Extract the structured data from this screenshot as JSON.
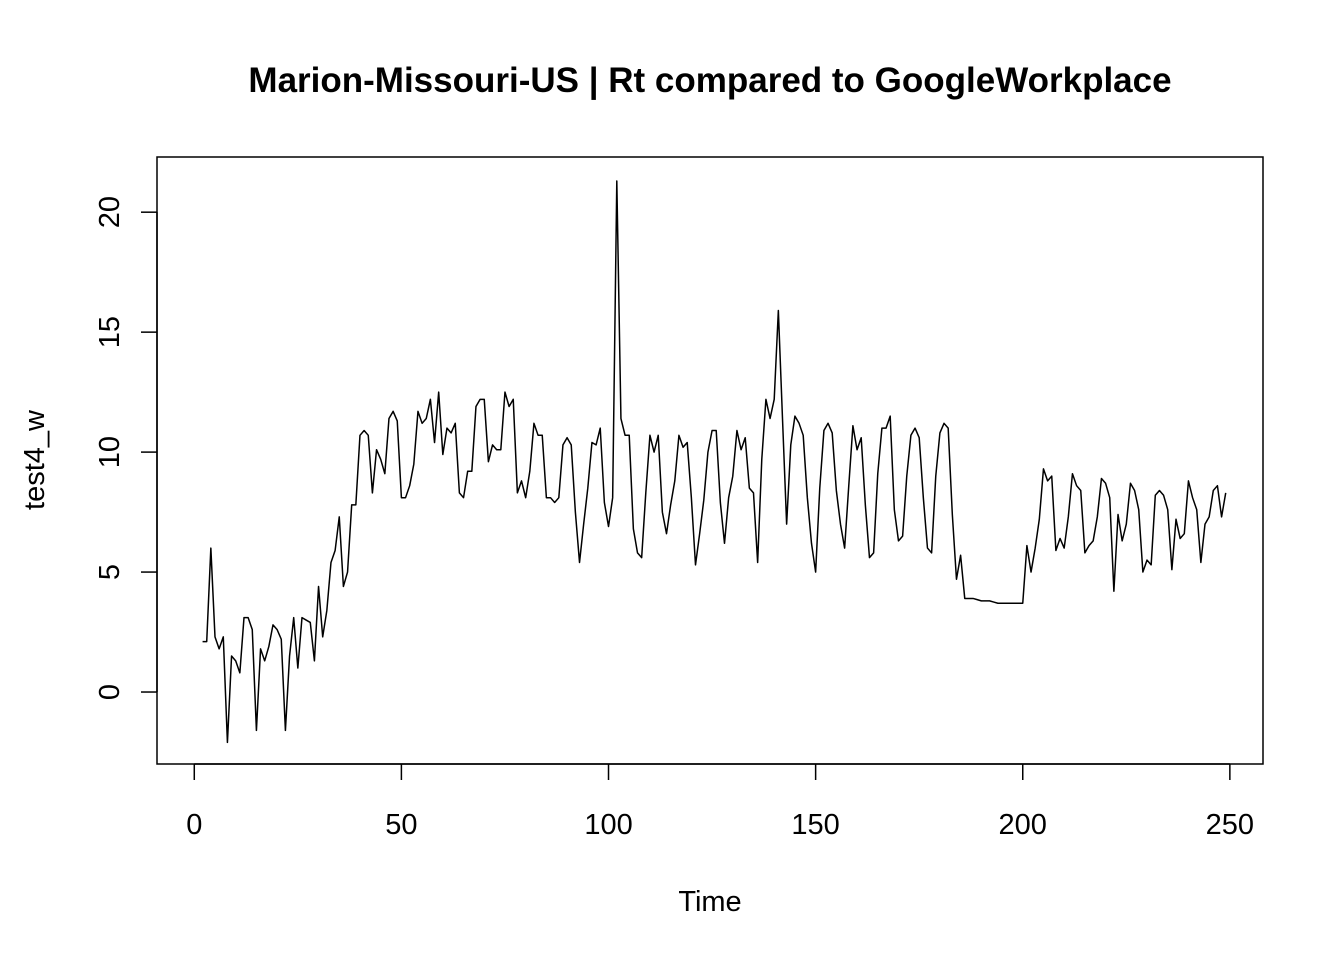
{
  "chart_data": {
    "type": "line",
    "title": "Marion-Missouri-US | Rt compared to GoogleWorkplace",
    "xlabel": "Time",
    "ylabel": "test4_w",
    "xlim": [
      -9,
      258
    ],
    "ylim": [
      -3,
      22.3
    ],
    "x_ticks": [
      0,
      50,
      100,
      150,
      200,
      250
    ],
    "y_ticks": [
      0,
      5,
      10,
      15,
      20
    ],
    "x_tick_labels": [
      "0",
      "50",
      "100",
      "150",
      "200",
      "250"
    ],
    "y_tick_labels": [
      "0",
      "5",
      "10",
      "15",
      "20"
    ],
    "grid": false,
    "legend": "none",
    "line_color": "#000000",
    "x_start": 2,
    "values": [
      2.1,
      2.1,
      6.0,
      2.3,
      1.8,
      2.3,
      -2.1,
      1.5,
      1.3,
      0.8,
      3.1,
      3.1,
      2.6,
      -1.6,
      1.8,
      1.3,
      1.9,
      2.8,
      2.6,
      2.2,
      -1.6,
      1.5,
      3.1,
      1.0,
      3.1,
      3.0,
      2.9,
      1.3,
      4.4,
      2.3,
      3.4,
      5.4,
      5.9,
      7.3,
      4.4,
      5.0,
      7.8,
      7.8,
      10.7,
      10.9,
      10.7,
      8.3,
      10.1,
      9.7,
      9.1,
      11.4,
      11.7,
      11.3,
      8.1,
      8.1,
      8.6,
      9.5,
      11.7,
      11.2,
      11.4,
      12.2,
      10.4,
      12.5,
      9.9,
      11.0,
      10.8,
      11.2,
      8.3,
      8.1,
      9.2,
      9.2,
      11.9,
      12.2,
      12.2,
      9.6,
      10.3,
      10.1,
      10.1,
      12.5,
      11.9,
      12.2,
      8.3,
      8.8,
      8.1,
      9.2,
      11.2,
      10.7,
      10.7,
      8.1,
      8.1,
      7.9,
      8.1,
      10.3,
      10.6,
      10.3,
      7.5,
      5.4,
      7.0,
      8.5,
      10.4,
      10.3,
      11.0,
      7.9,
      6.9,
      8.1,
      21.3,
      11.4,
      10.7,
      10.7,
      6.8,
      5.8,
      5.6,
      8.3,
      10.7,
      10.0,
      10.7,
      7.5,
      6.6,
      7.8,
      8.8,
      10.7,
      10.2,
      10.4,
      8.1,
      5.3,
      6.6,
      8.0,
      10.0,
      10.9,
      10.9,
      7.9,
      6.2,
      8.1,
      9.0,
      10.9,
      10.1,
      10.6,
      8.5,
      8.3,
      5.4,
      9.7,
      12.2,
      11.4,
      12.2,
      15.9,
      11.4,
      7.0,
      10.3,
      11.5,
      11.2,
      10.7,
      8.1,
      6.2,
      5.0,
      8.5,
      10.9,
      11.2,
      10.8,
      8.4,
      7.0,
      6.0,
      8.6,
      11.1,
      10.1,
      10.6,
      7.8,
      5.6,
      5.8,
      9.1,
      11.0,
      11.0,
      11.5,
      7.6,
      6.3,
      6.5,
      9.0,
      10.7,
      11.0,
      10.6,
      8.1,
      6.0,
      5.8,
      9.0,
      10.8,
      11.2,
      11.0,
      7.4,
      4.7,
      5.7,
      3.9,
      3.9,
      3.9,
      3.85,
      3.8,
      3.8,
      3.8,
      3.75,
      3.7,
      3.7,
      3.7,
      3.7,
      3.7,
      3.7,
      3.7,
      6.1,
      5.0,
      6.0,
      7.2,
      9.3,
      8.8,
      9.0,
      5.9,
      6.4,
      6.0,
      7.3,
      9.1,
      8.6,
      8.4,
      5.8,
      6.1,
      6.3,
      7.3,
      8.9,
      8.7,
      8.1,
      4.2,
      7.4,
      6.3,
      7.0,
      8.7,
      8.4,
      7.6,
      5.0,
      5.5,
      5.3,
      8.2,
      8.4,
      8.2,
      7.6,
      5.1,
      7.2,
      6.4,
      6.6,
      8.8,
      8.1,
      7.6,
      5.4,
      7.0,
      7.3,
      8.4,
      8.6,
      7.3,
      8.3
    ]
  }
}
